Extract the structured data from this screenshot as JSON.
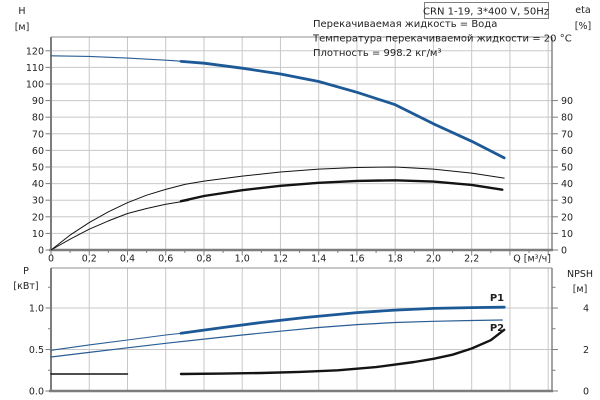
{
  "header": {
    "title": "CRN 1-19, 3*400 V, 50Hz"
  },
  "info_lines": [
    "Перекачиваемая жидкость = Вода",
    "Температура перекачиваемой жидкости = 20 °C",
    "Плотность = 998.2 кг/м³"
  ],
  "labels": {
    "h_axis": "H",
    "h_unit": "[м]",
    "eta_axis": "eta",
    "eta_unit": "[%]",
    "p_axis": "P",
    "p_unit": "[кВт]",
    "npsh_axis": "NPSH",
    "npsh_unit": "[м]",
    "q_axis": "Q [м³/ч]",
    "p1": "P1",
    "p2": "P2"
  },
  "colors": {
    "curve_blue": "#1c5996",
    "curve_blue_thin": "#2a5d94",
    "curve_black": "#141414",
    "grid": "#c8c8c8",
    "frame": "#909090",
    "axis": "#7d7d7d",
    "text": "#1f1f1f",
    "label_blue": "#1f5c99",
    "box_border": "#808080",
    "background": "#ffffff"
  },
  "chart_data": [
    {
      "type": "line",
      "title": "CRN 1-19, 3*400 V, 50Hz",
      "xlabel": "Q [м³/ч]",
      "ylabel_left": "H [м]",
      "ylabel_right": "eta [%]",
      "xlim": [
        0,
        2.62
      ],
      "ylim_left": [
        0,
        128.3
      ],
      "ylim_right": [
        0,
        128.3
      ],
      "grid": true,
      "x_ticks": {
        "values": [
          0,
          0.2,
          0.4,
          0.6,
          0.8,
          1.0,
          1.2,
          1.4,
          1.6,
          1.8,
          2.0,
          2.2
        ],
        "labels": [
          "0",
          "0,2",
          "0,4",
          "0,6",
          "0,8",
          "1,0",
          "1,2",
          "1,4",
          "1,6",
          "1,8",
          "2,0",
          "2,2"
        ]
      },
      "x_unlabeled_ticks": [
        2.4,
        2.6
      ],
      "x_minor_ticks": [
        0.1,
        0.3,
        0.5,
        0.7,
        0.9,
        1.1,
        1.3,
        1.5,
        1.7,
        1.9,
        2.1,
        2.3,
        2.5
      ],
      "x_grid": [
        0.2,
        0.4,
        0.6,
        0.8,
        1.0,
        1.2,
        1.4,
        1.6,
        1.8,
        2.0,
        2.2,
        2.4,
        2.6
      ],
      "y_left_ticks": {
        "values": [
          0,
          10,
          20,
          30,
          40,
          50,
          60,
          70,
          80,
          90,
          100,
          110,
          120
        ],
        "labels": [
          "0",
          "10",
          "20",
          "30",
          "40",
          "50",
          "60",
          "70",
          "80",
          "90",
          "100",
          "110",
          "120"
        ]
      },
      "y_right_ticks": {
        "values": [
          0,
          10,
          20,
          30,
          40,
          50,
          60,
          70,
          80,
          90
        ],
        "labels": [
          "0",
          "10",
          "20",
          "30",
          "40",
          "50",
          "60",
          "70",
          "80",
          "90"
        ]
      },
      "y_grid": [
        10,
        20,
        30,
        40,
        50,
        60,
        70,
        80,
        90,
        100,
        110,
        120
      ],
      "series": [
        {
          "name": "H-curve-thin",
          "axis": "left",
          "color": "#2a5d94",
          "width": 1.1,
          "points": [
            [
              0,
              117
            ],
            [
              0.2,
              116.6
            ],
            [
              0.4,
              115.6
            ],
            [
              0.6,
              114.3
            ],
            [
              0.72,
              113.4
            ]
          ]
        },
        {
          "name": "H-curve-thick",
          "axis": "left",
          "color": "#1c5996",
          "width": 2.8,
          "points": [
            [
              0.68,
              113.6
            ],
            [
              0.8,
              112.5
            ],
            [
              1.0,
              109.5
            ],
            [
              1.2,
              106
            ],
            [
              1.4,
              101.5
            ],
            [
              1.6,
              95
            ],
            [
              1.8,
              87.5
            ],
            [
              2.0,
              76
            ],
            [
              2.2,
              65.5
            ],
            [
              2.37,
              55.5
            ]
          ]
        },
        {
          "name": "eta-pump-curve",
          "axis": "right",
          "color": "#141414",
          "width": 1,
          "points": [
            [
              0,
              0
            ],
            [
              0.1,
              9
            ],
            [
              0.2,
              16.5
            ],
            [
              0.3,
              23
            ],
            [
              0.4,
              28.5
            ],
            [
              0.5,
              33
            ],
            [
              0.6,
              36.5
            ],
            [
              0.7,
              39.5
            ],
            [
              0.8,
              41.5
            ],
            [
              1.0,
              44.5
            ],
            [
              1.2,
              47
            ],
            [
              1.4,
              48.7
            ],
            [
              1.6,
              49.7
            ],
            [
              1.8,
              50
            ],
            [
              2.0,
              48.7
            ],
            [
              2.2,
              46.3
            ],
            [
              2.37,
              43.3
            ]
          ]
        },
        {
          "name": "eta-motor-curve-thin",
          "axis": "right",
          "color": "#141414",
          "width": 1,
          "points": [
            [
              0,
              0
            ],
            [
              0.1,
              6.5
            ],
            [
              0.2,
              12.5
            ],
            [
              0.3,
              17.5
            ],
            [
              0.4,
              22
            ],
            [
              0.5,
              25
            ],
            [
              0.6,
              27.5
            ],
            [
              0.72,
              29.8
            ]
          ]
        },
        {
          "name": "eta-motor-curve-thick",
          "axis": "right",
          "color": "#141414",
          "width": 2.4,
          "points": [
            [
              0.68,
              29.4
            ],
            [
              0.8,
              32.5
            ],
            [
              1.0,
              36
            ],
            [
              1.2,
              38.7
            ],
            [
              1.4,
              40.5
            ],
            [
              1.6,
              41.6
            ],
            [
              1.8,
              42
            ],
            [
              2.0,
              41.2
            ],
            [
              2.2,
              39.2
            ],
            [
              2.36,
              36.3
            ]
          ]
        }
      ]
    },
    {
      "type": "line",
      "title": "",
      "xlabel": "",
      "ylabel_left": "P [кВт]",
      "ylabel_right": "NPSH [м]",
      "xlim": [
        0,
        2.62
      ],
      "ylim_left": [
        0,
        1.482
      ],
      "ylim_right": [
        0,
        5.93
      ],
      "grid": true,
      "x_ticks": {
        "values": [],
        "labels": []
      },
      "x_unlabeled_ticks": [],
      "x_minor_ticks": [],
      "x_grid": [
        0.2,
        0.4,
        0.6,
        0.8,
        1.0,
        1.2,
        1.4,
        1.6,
        1.8,
        2.0,
        2.2,
        2.4,
        2.6
      ],
      "y_left_ticks": {
        "values": [
          0,
          0.5,
          1.0
        ],
        "labels": [
          "0.0",
          "0.5",
          "1.0"
        ]
      },
      "y_left_minor": [
        0.25,
        0.75,
        1.25
      ],
      "y_right_ticks": {
        "values": [
          0,
          2,
          4
        ],
        "labels": [
          "0",
          "2",
          "4"
        ]
      },
      "y_right_minor": [
        1,
        3,
        5
      ],
      "y_grid": [
        0.5,
        1.0
      ],
      "series": [
        {
          "name": "P1-curve-thin",
          "axis": "left",
          "color": "#2a5d94",
          "width": 1.1,
          "points": [
            [
              0,
              0.49
            ],
            [
              0.2,
              0.555
            ],
            [
              0.4,
              0.615
            ],
            [
              0.6,
              0.675
            ],
            [
              0.72,
              0.705
            ]
          ]
        },
        {
          "name": "P1-curve-thick",
          "axis": "left",
          "color": "#1c5996",
          "width": 2.8,
          "points": [
            [
              0.68,
              0.695
            ],
            [
              0.9,
              0.765
            ],
            [
              1.1,
              0.825
            ],
            [
              1.33,
              0.885
            ],
            [
              1.6,
              0.945
            ],
            [
              1.8,
              0.975
            ],
            [
              2.0,
              0.995
            ],
            [
              2.2,
              1.005
            ],
            [
              2.37,
              1.01
            ]
          ]
        },
        {
          "name": "P2-curve",
          "axis": "left",
          "color": "#2a5d94",
          "width": 1.2,
          "points": [
            [
              0,
              0.41
            ],
            [
              0.2,
              0.465
            ],
            [
              0.4,
              0.52
            ],
            [
              0.6,
              0.575
            ],
            [
              0.8,
              0.625
            ],
            [
              1.0,
              0.675
            ],
            [
              1.2,
              0.72
            ],
            [
              1.4,
              0.765
            ],
            [
              1.6,
              0.8
            ],
            [
              1.8,
              0.825
            ],
            [
              2.0,
              0.84
            ],
            [
              2.2,
              0.85
            ],
            [
              2.36,
              0.855
            ]
          ]
        },
        {
          "name": "NPSH-curve-low",
          "axis": "right",
          "color": "#141414",
          "width": 1.4,
          "points": [
            [
              0,
              0.82
            ],
            [
              0.4,
              0.82
            ]
          ]
        },
        {
          "name": "NPSH-curve-main",
          "axis": "right",
          "color": "#141414",
          "width": 2.4,
          "points": [
            [
              0.68,
              0.82
            ],
            [
              0.9,
              0.84
            ],
            [
              1.1,
              0.87
            ],
            [
              1.3,
              0.92
            ],
            [
              1.5,
              1.0
            ],
            [
              1.7,
              1.15
            ],
            [
              1.9,
              1.4
            ],
            [
              2.0,
              1.55
            ],
            [
              2.1,
              1.75
            ],
            [
              2.2,
              2.05
            ],
            [
              2.3,
              2.45
            ],
            [
              2.37,
              2.95
            ]
          ]
        }
      ]
    }
  ]
}
